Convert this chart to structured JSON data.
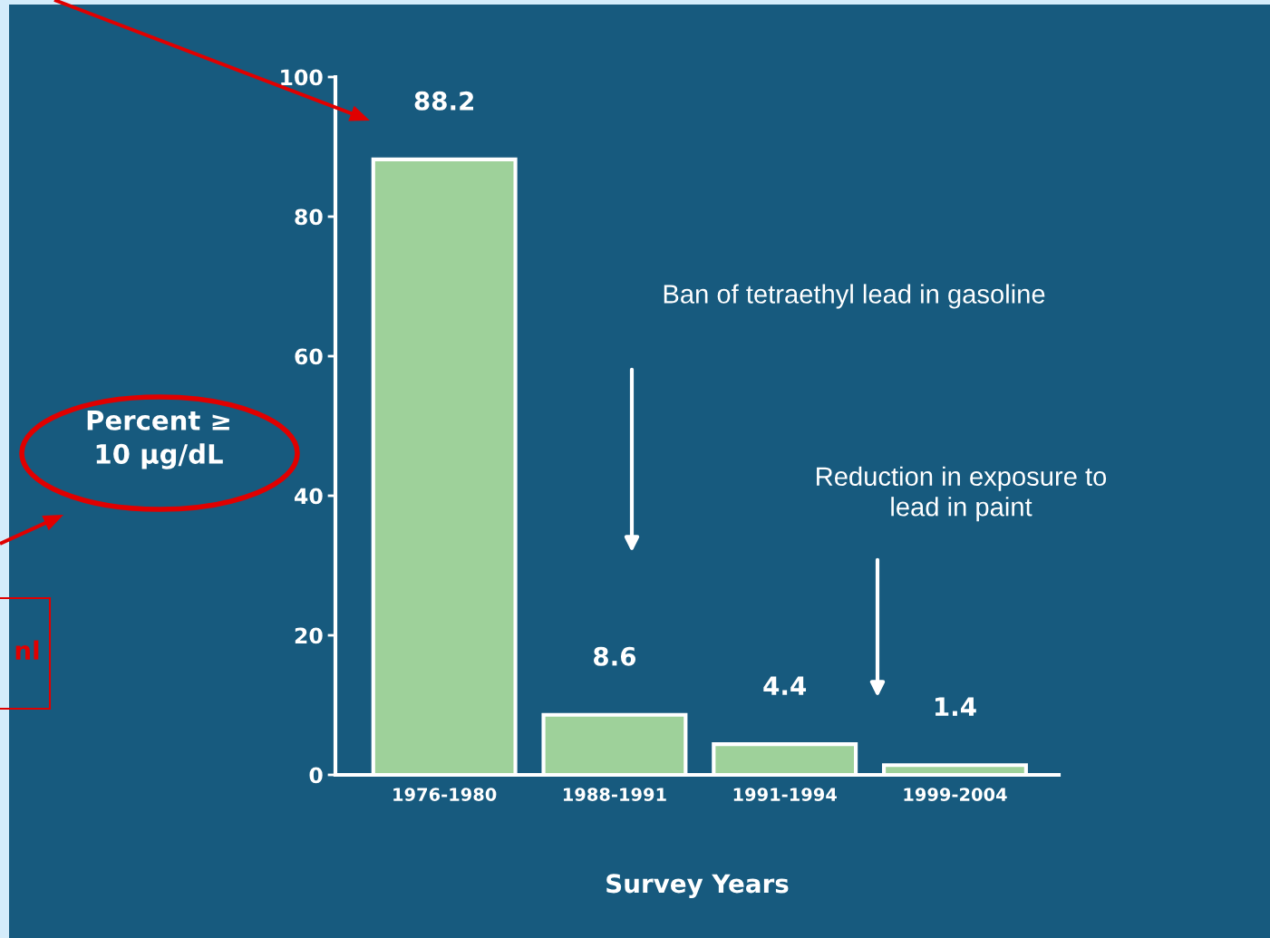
{
  "chart_data": {
    "type": "bar",
    "xlabel": "Survey Years",
    "ylabel": "Percent ≥\n10 μg/dL",
    "categories": [
      "1976-1980",
      "1988-1991",
      "1991-1994",
      "1999-2004"
    ],
    "values": [
      88.2,
      8.6,
      4.4,
      1.4
    ],
    "color": "#9ed19a",
    "data_labels": true,
    "ylim": [
      0,
      100
    ],
    "yticks": [
      0,
      20,
      40,
      60,
      80,
      100
    ],
    "grid": false,
    "annotations": [
      "Ban of tetraethyl lead in gasoline",
      "Reduction in exposure to\nlead in paint",
      "nl"
    ]
  }
}
